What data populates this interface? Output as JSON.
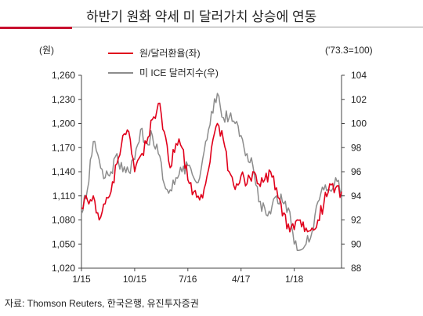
{
  "title": "하반기 원화 약세     미 달러가치 상승에 연동",
  "source": "자료: Thomson Reuters, 한국은행, 유진투자증권",
  "colors": {
    "krw": "#e0001b",
    "dxy": "#8c8c8c",
    "accent": "#c8102e"
  },
  "chart_data": {
    "type": "line",
    "left_unit": "(원)",
    "right_unit": "('73.3=100)",
    "x_ticks": [
      "1/15",
      "10/15",
      "7/16",
      "4/17",
      "1/18"
    ],
    "x_range": [
      "2015-01",
      "2018-09"
    ],
    "y_left": {
      "range": [
        1020,
        1260
      ],
      "ticks": [
        "1,020",
        "1,050",
        "1,080",
        "1,110",
        "1,140",
        "1,170",
        "1,200",
        "1,230",
        "1,260"
      ]
    },
    "y_right": {
      "range": [
        88,
        104
      ],
      "ticks": [
        "88",
        "90",
        "92",
        "94",
        "96",
        "98",
        "100",
        "102",
        "104"
      ]
    },
    "grid": false,
    "legend_position": "top",
    "series": [
      {
        "name": "원/달러환율(좌)",
        "axis": "left",
        "x": [
          "2015-01",
          "2015-02",
          "2015-03",
          "2015-04",
          "2015-05",
          "2015-06",
          "2015-07",
          "2015-08",
          "2015-09",
          "2015-10",
          "2015-11",
          "2015-12",
          "2016-01",
          "2016-02",
          "2016-03",
          "2016-04",
          "2016-05",
          "2016-06",
          "2016-07",
          "2016-08",
          "2016-09",
          "2016-10",
          "2016-11",
          "2016-12",
          "2017-01",
          "2017-02",
          "2017-03",
          "2017-04",
          "2017-05",
          "2017-06",
          "2017-07",
          "2017-08",
          "2017-09",
          "2017-10",
          "2017-11",
          "2017-12",
          "2018-01",
          "2018-02",
          "2018-03",
          "2018-04",
          "2018-05",
          "2018-06",
          "2018-07",
          "2018-08",
          "2018-09"
        ],
        "values": [
          1095,
          1105,
          1110,
          1080,
          1100,
          1115,
          1150,
          1185,
          1190,
          1140,
          1160,
          1175,
          1205,
          1225,
          1190,
          1145,
          1175,
          1170,
          1130,
          1115,
          1105,
          1125,
          1170,
          1200,
          1180,
          1140,
          1118,
          1135,
          1125,
          1140,
          1125,
          1130,
          1140,
          1120,
          1085,
          1075,
          1068,
          1080,
          1070,
          1070,
          1080,
          1100,
          1125,
          1120,
          1115
        ]
      },
      {
        "name": "미 ICE 달러지수(우)",
        "axis": "right",
        "x": [
          "2015-01",
          "2015-02",
          "2015-03",
          "2015-04",
          "2015-05",
          "2015-06",
          "2015-07",
          "2015-08",
          "2015-09",
          "2015-10",
          "2015-11",
          "2015-12",
          "2016-01",
          "2016-02",
          "2016-03",
          "2016-04",
          "2016-05",
          "2016-06",
          "2016-07",
          "2016-08",
          "2016-09",
          "2016-10",
          "2016-11",
          "2016-12",
          "2017-01",
          "2017-02",
          "2017-03",
          "2017-04",
          "2017-05",
          "2017-06",
          "2017-07",
          "2017-08",
          "2017-09",
          "2017-10",
          "2017-11",
          "2017-12",
          "2018-01",
          "2018-02",
          "2018-03",
          "2018-04",
          "2018-05",
          "2018-06",
          "2018-07",
          "2018-08",
          "2018-09"
        ],
        "values": [
          92.5,
          94.5,
          98.5,
          97.0,
          95.5,
          96.0,
          97.5,
          96.0,
          96.0,
          97.0,
          99.5,
          98.5,
          99.0,
          97.5,
          95.0,
          94.5,
          95.5,
          96.0,
          96.5,
          95.5,
          95.5,
          98.5,
          101.0,
          102.5,
          100.5,
          100.5,
          100.0,
          99.0,
          97.5,
          96.5,
          93.5,
          93.0,
          92.5,
          94.0,
          93.5,
          93.0,
          90.0,
          89.5,
          90.0,
          91.0,
          93.5,
          94.5,
          94.5,
          95.5,
          94.5
        ]
      }
    ]
  }
}
